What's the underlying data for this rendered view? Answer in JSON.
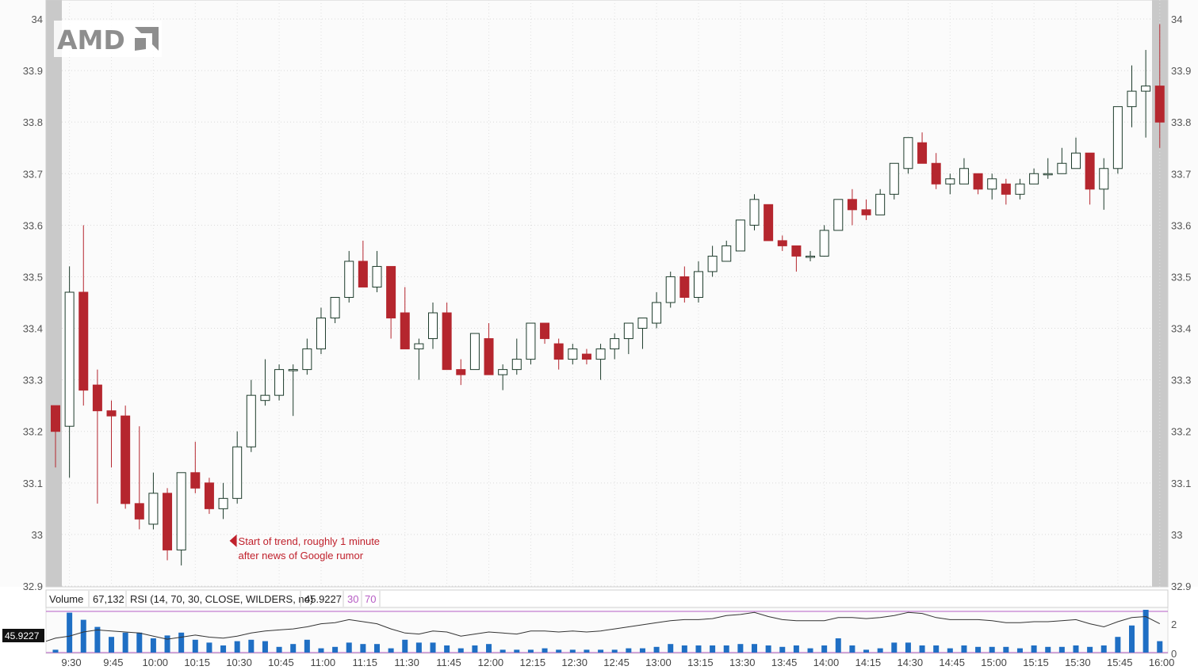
{
  "symbol_logo": "AMD",
  "annotation": {
    "line1": "Start of trend, roughly 1 minute",
    "line2": "after news of Google rumor",
    "time_index": 12,
    "price": 33.0
  },
  "indicator_legend": {
    "volume_label": "Volume",
    "volume_value": "67,132",
    "rsi_label": "RSI (14, 70, 30, CLOSE, WILDERS, no)",
    "rsi_value": "45.9227",
    "rsi_lower": "30",
    "rsi_upper": "70",
    "rsi_badge": "45.9227"
  },
  "colors": {
    "up_fill": "#ffffff",
    "up_stroke": "#1d3b2b",
    "down_fill": "#b5262e",
    "down_wick": "#b5262e",
    "volume_bar": "#1f6fc4",
    "rsi_line": "#333333",
    "rsi_band": "#b65cc4",
    "annotation": "#c0212c",
    "session_shade": "#c8c8c8"
  },
  "chart_data": [
    {
      "type": "candlestick",
      "title": "",
      "ylim": [
        32.9,
        34.0
      ],
      "y_ticks": [
        34,
        33.9,
        33.8,
        33.7,
        33.6,
        33.5,
        33.4,
        33.3,
        33.2,
        33.1,
        33,
        32.9
      ],
      "y_tick_labels": [
        "34",
        "33.9",
        "33.8",
        "33.7",
        "33.6",
        "33.5",
        "33.4",
        "33.3",
        "33.2",
        "33.1",
        "33",
        "32.9"
      ],
      "x_tick_labels": [
        "9:30",
        "9:45",
        "10:00",
        "10:15",
        "10:30",
        "10:45",
        "11:00",
        "11:15",
        "11:30",
        "11:45",
        "12:00",
        "12:15",
        "12:30",
        "12:45",
        "13:00",
        "13:15",
        "13:30",
        "13:45",
        "14:00",
        "14:15",
        "14:30",
        "14:45",
        "15:00",
        "15:15",
        "15:30",
        "15:45",
        "16:00"
      ],
      "x_tick_every": 3,
      "grid": true,
      "candles": [
        {
          "o": 33.25,
          "h": 33.25,
          "l": 33.13,
          "c": 33.2
        },
        {
          "o": 33.21,
          "h": 33.52,
          "l": 33.11,
          "c": 33.47
        },
        {
          "o": 33.47,
          "h": 33.6,
          "l": 33.25,
          "c": 33.28
        },
        {
          "o": 33.29,
          "h": 33.32,
          "l": 33.06,
          "c": 33.24
        },
        {
          "o": 33.24,
          "h": 33.26,
          "l": 33.13,
          "c": 33.23
        },
        {
          "o": 33.23,
          "h": 33.25,
          "l": 33.05,
          "c": 33.06
        },
        {
          "o": 33.06,
          "h": 33.21,
          "l": 33.01,
          "c": 33.03
        },
        {
          "o": 33.02,
          "h": 33.12,
          "l": 33.01,
          "c": 33.08
        },
        {
          "o": 33.08,
          "h": 33.09,
          "l": 32.95,
          "c": 32.97
        },
        {
          "o": 32.97,
          "h": 33.12,
          "l": 32.94,
          "c": 33.12
        },
        {
          "o": 33.12,
          "h": 33.18,
          "l": 33.08,
          "c": 33.09
        },
        {
          "o": 33.1,
          "h": 33.11,
          "l": 33.04,
          "c": 33.05
        },
        {
          "o": 33.05,
          "h": 33.1,
          "l": 33.03,
          "c": 33.07
        },
        {
          "o": 33.07,
          "h": 33.2,
          "l": 33.06,
          "c": 33.17
        },
        {
          "o": 33.17,
          "h": 33.3,
          "l": 33.16,
          "c": 33.27
        },
        {
          "o": 33.26,
          "h": 33.34,
          "l": 33.25,
          "c": 33.27
        },
        {
          "o": 33.27,
          "h": 33.33,
          "l": 33.26,
          "c": 33.32
        },
        {
          "o": 33.32,
          "h": 33.33,
          "l": 33.23,
          "c": 33.32
        },
        {
          "o": 33.32,
          "h": 33.38,
          "l": 33.31,
          "c": 33.36
        },
        {
          "o": 33.36,
          "h": 33.44,
          "l": 33.35,
          "c": 33.42
        },
        {
          "o": 33.42,
          "h": 33.46,
          "l": 33.41,
          "c": 33.46
        },
        {
          "o": 33.46,
          "h": 33.55,
          "l": 33.45,
          "c": 33.53
        },
        {
          "o": 33.53,
          "h": 33.57,
          "l": 33.48,
          "c": 33.48
        },
        {
          "o": 33.48,
          "h": 33.55,
          "l": 33.47,
          "c": 33.52
        },
        {
          "o": 33.52,
          "h": 33.52,
          "l": 33.38,
          "c": 33.42
        },
        {
          "o": 33.43,
          "h": 33.48,
          "l": 33.36,
          "c": 33.36
        },
        {
          "o": 33.36,
          "h": 33.38,
          "l": 33.3,
          "c": 33.37
        },
        {
          "o": 33.38,
          "h": 33.45,
          "l": 33.36,
          "c": 33.43
        },
        {
          "o": 33.43,
          "h": 33.45,
          "l": 33.32,
          "c": 33.32
        },
        {
          "o": 33.32,
          "h": 33.34,
          "l": 33.29,
          "c": 33.31
        },
        {
          "o": 33.32,
          "h": 33.39,
          "l": 33.32,
          "c": 33.39
        },
        {
          "o": 33.38,
          "h": 33.41,
          "l": 33.31,
          "c": 33.31
        },
        {
          "o": 33.31,
          "h": 33.33,
          "l": 33.28,
          "c": 33.32
        },
        {
          "o": 33.32,
          "h": 33.38,
          "l": 33.31,
          "c": 33.34
        },
        {
          "o": 33.34,
          "h": 33.41,
          "l": 33.33,
          "c": 33.41
        },
        {
          "o": 33.41,
          "h": 33.41,
          "l": 33.37,
          "c": 33.38
        },
        {
          "o": 33.37,
          "h": 33.38,
          "l": 33.32,
          "c": 33.34
        },
        {
          "o": 33.34,
          "h": 33.37,
          "l": 33.33,
          "c": 33.36
        },
        {
          "o": 33.35,
          "h": 33.36,
          "l": 33.33,
          "c": 33.34
        },
        {
          "o": 33.34,
          "h": 33.37,
          "l": 33.3,
          "c": 33.36
        },
        {
          "o": 33.36,
          "h": 33.39,
          "l": 33.34,
          "c": 33.38
        },
        {
          "o": 33.38,
          "h": 33.41,
          "l": 33.35,
          "c": 33.41
        },
        {
          "o": 33.4,
          "h": 33.42,
          "l": 33.36,
          "c": 33.42
        },
        {
          "o": 33.41,
          "h": 33.47,
          "l": 33.4,
          "c": 33.45
        },
        {
          "o": 33.45,
          "h": 33.51,
          "l": 33.44,
          "c": 33.5
        },
        {
          "o": 33.5,
          "h": 33.52,
          "l": 33.45,
          "c": 33.46
        },
        {
          "o": 33.46,
          "h": 33.53,
          "l": 33.45,
          "c": 33.51
        },
        {
          "o": 33.51,
          "h": 33.56,
          "l": 33.5,
          "c": 33.54
        },
        {
          "o": 33.53,
          "h": 33.57,
          "l": 33.53,
          "c": 33.56
        },
        {
          "o": 33.55,
          "h": 33.61,
          "l": 33.55,
          "c": 33.61
        },
        {
          "o": 33.6,
          "h": 33.66,
          "l": 33.59,
          "c": 33.65
        },
        {
          "o": 33.64,
          "h": 33.64,
          "l": 33.57,
          "c": 33.57
        },
        {
          "o": 33.57,
          "h": 33.58,
          "l": 33.55,
          "c": 33.56
        },
        {
          "o": 33.56,
          "h": 33.56,
          "l": 33.51,
          "c": 33.54
        },
        {
          "o": 33.54,
          "h": 33.55,
          "l": 33.53,
          "c": 33.54
        },
        {
          "o": 33.54,
          "h": 33.6,
          "l": 33.54,
          "c": 33.59
        },
        {
          "o": 33.59,
          "h": 33.65,
          "l": 33.59,
          "c": 33.65
        },
        {
          "o": 33.65,
          "h": 33.67,
          "l": 33.6,
          "c": 33.63
        },
        {
          "o": 33.63,
          "h": 33.65,
          "l": 33.61,
          "c": 33.62
        },
        {
          "o": 33.62,
          "h": 33.67,
          "l": 33.62,
          "c": 33.66
        },
        {
          "o": 33.66,
          "h": 33.72,
          "l": 33.65,
          "c": 33.72
        },
        {
          "o": 33.71,
          "h": 33.77,
          "l": 33.7,
          "c": 33.77
        },
        {
          "o": 33.76,
          "h": 33.78,
          "l": 33.72,
          "c": 33.72
        },
        {
          "o": 33.72,
          "h": 33.74,
          "l": 33.67,
          "c": 33.68
        },
        {
          "o": 33.68,
          "h": 33.7,
          "l": 33.66,
          "c": 33.69
        },
        {
          "o": 33.68,
          "h": 33.73,
          "l": 33.68,
          "c": 33.71
        },
        {
          "o": 33.7,
          "h": 33.7,
          "l": 33.66,
          "c": 33.67
        },
        {
          "o": 33.67,
          "h": 33.7,
          "l": 33.65,
          "c": 33.69
        },
        {
          "o": 33.68,
          "h": 33.69,
          "l": 33.64,
          "c": 33.66
        },
        {
          "o": 33.66,
          "h": 33.69,
          "l": 33.65,
          "c": 33.68
        },
        {
          "o": 33.68,
          "h": 33.71,
          "l": 33.68,
          "c": 33.7
        },
        {
          "o": 33.7,
          "h": 33.73,
          "l": 33.69,
          "c": 33.7
        },
        {
          "o": 33.7,
          "h": 33.75,
          "l": 33.7,
          "c": 33.72
        },
        {
          "o": 33.71,
          "h": 33.77,
          "l": 33.71,
          "c": 33.74
        },
        {
          "o": 33.74,
          "h": 33.74,
          "l": 33.64,
          "c": 33.67
        },
        {
          "o": 33.67,
          "h": 33.73,
          "l": 33.63,
          "c": 33.71
        },
        {
          "o": 33.71,
          "h": 33.83,
          "l": 33.7,
          "c": 33.83
        },
        {
          "o": 33.83,
          "h": 33.91,
          "l": 33.79,
          "c": 33.86
        },
        {
          "o": 33.86,
          "h": 33.94,
          "l": 33.77,
          "c": 33.87
        },
        {
          "o": 33.87,
          "h": 33.99,
          "l": 33.75,
          "c": 33.8
        }
      ]
    },
    {
      "type": "bar",
      "title": "Volume",
      "ylim": [
        0,
        3
      ],
      "y_ticks": [
        0,
        2
      ],
      "y_tick_labels": [
        "0",
        "2"
      ],
      "values": [
        0.2,
        2.8,
        2.3,
        1.8,
        1.1,
        1.4,
        1.4,
        1.0,
        1.2,
        1.4,
        0.9,
        0.7,
        0.5,
        0.8,
        0.9,
        0.8,
        0.4,
        0.6,
        0.9,
        0.3,
        0.4,
        0.7,
        0.6,
        0.6,
        0.3,
        0.9,
        0.7,
        0.7,
        0.5,
        0.3,
        0.5,
        0.6,
        0.2,
        0.2,
        0.2,
        0.3,
        0.2,
        0.2,
        0.2,
        0.2,
        0.2,
        0.3,
        0.3,
        0.4,
        0.6,
        0.5,
        0.5,
        0.5,
        0.5,
        0.6,
        0.6,
        0.5,
        0.4,
        0.5,
        0.3,
        0.5,
        1.0,
        0.5,
        0.2,
        0.3,
        0.7,
        0.7,
        0.5,
        0.5,
        0.3,
        0.5,
        0.4,
        0.4,
        0.4,
        0.3,
        0.5,
        0.4,
        0.4,
        0.5,
        0.4,
        0.5,
        1.1,
        1.9,
        3.0,
        0.8
      ]
    },
    {
      "type": "line",
      "title": "RSI (14, 70, 30, CLOSE, WILDERS, no)",
      "ylim": [
        30,
        70
      ],
      "values": [
        44,
        46,
        50,
        52,
        51,
        50,
        49,
        46,
        43,
        45,
        47,
        45,
        44,
        46,
        49,
        51,
        52,
        53,
        55,
        58,
        59,
        62,
        60,
        58,
        53,
        49,
        48,
        51,
        50,
        46,
        48,
        50,
        49,
        48,
        51,
        51,
        50,
        51,
        50,
        51,
        53,
        55,
        57,
        59,
        61,
        62,
        62,
        63,
        66,
        67,
        69,
        65,
        62,
        61,
        61,
        61,
        64,
        64,
        63,
        64,
        66,
        69,
        68,
        64,
        62,
        62,
        62,
        61,
        59,
        59,
        60,
        60,
        61,
        62,
        58,
        55,
        60,
        64,
        65,
        58
      ]
    }
  ]
}
